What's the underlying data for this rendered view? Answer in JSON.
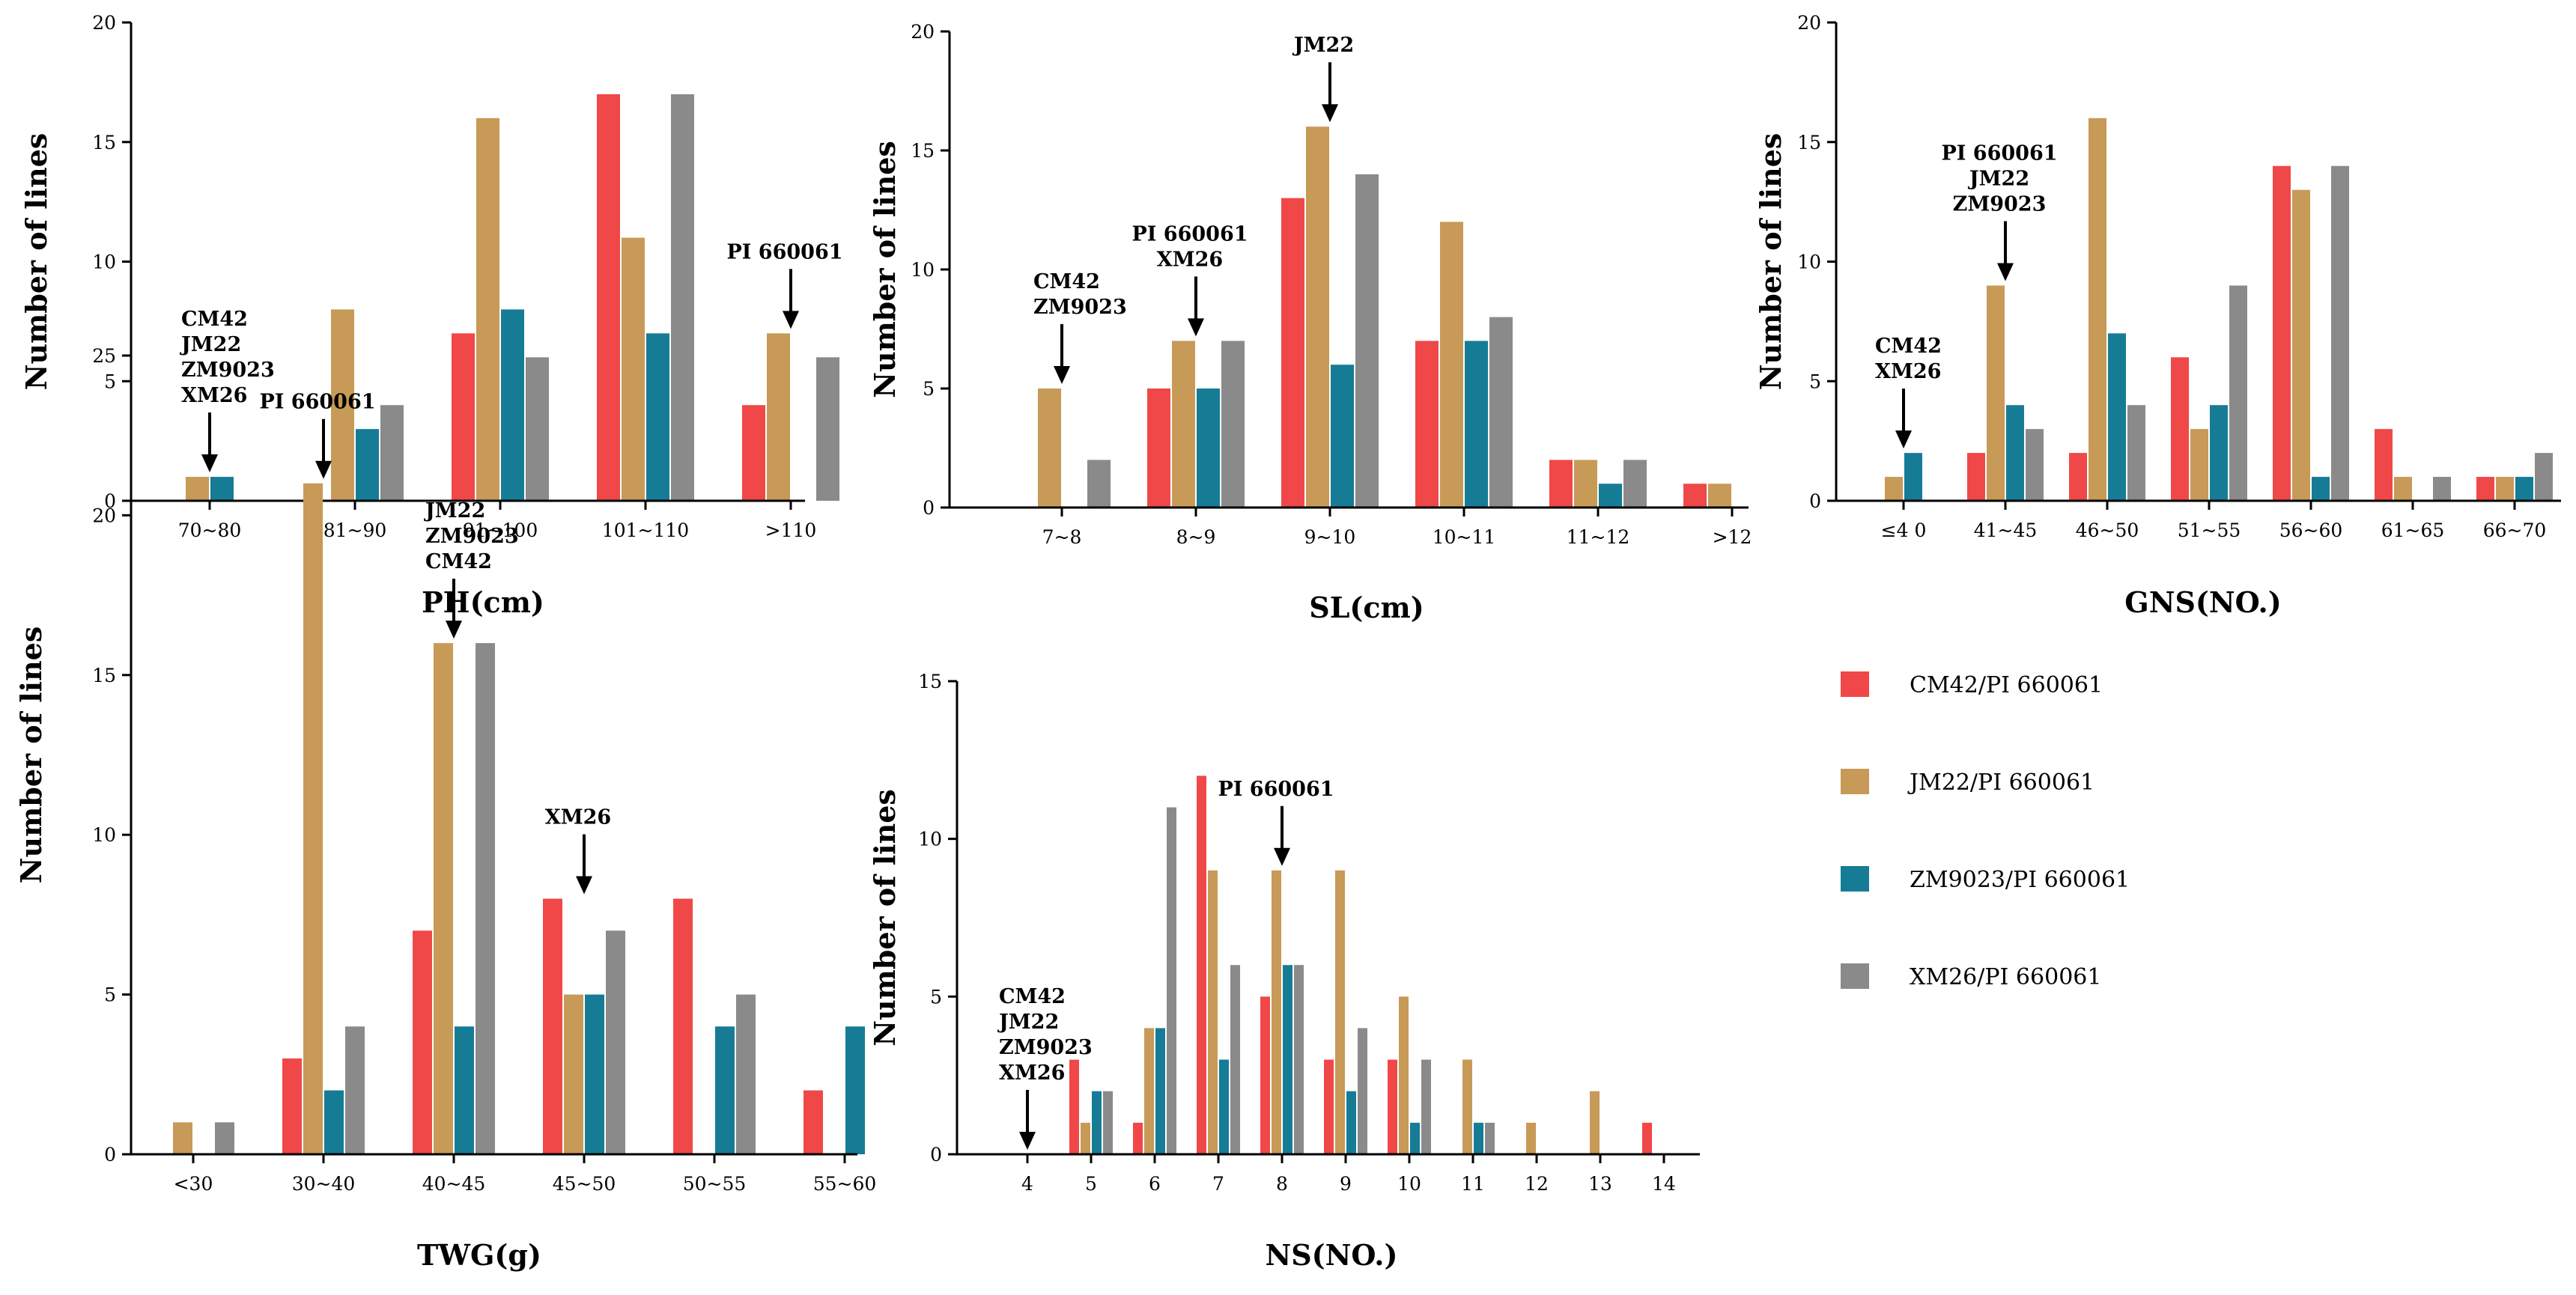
{
  "legend": [
    {
      "name": "CM42/PI 660061",
      "color": "#f04848"
    },
    {
      "name": "JM22/PI 660061",
      "color": "#c79a57"
    },
    {
      "name": "ZM9023/PI 660061",
      "color": "#167c96"
    },
    {
      "name": "XM26/PI 660061",
      "color": "#8a8a8a"
    }
  ],
  "chart_data": [
    {
      "id": "ph",
      "type": "bar",
      "xlabel": "PH(cm)",
      "ylabel": "Number  of  lines",
      "ylim": [
        0,
        20
      ],
      "yticks": [
        0,
        5,
        10,
        15,
        20
      ],
      "categories": [
        "70~80",
        "81~90",
        "91~100",
        "101~110",
        ">110"
      ],
      "series": [
        {
          "name": "CM42/PI 660061",
          "values": [
            0,
            0,
            7,
            17,
            4
          ]
        },
        {
          "name": "JM22/PI 660061",
          "values": [
            1,
            8,
            16,
            11,
            7
          ]
        },
        {
          "name": "ZM9023/PI 660061",
          "values": [
            1,
            3,
            8,
            7,
            0
          ]
        },
        {
          "name": "XM26/PI 660061",
          "values": [
            0,
            4,
            6,
            17,
            6
          ]
        }
      ],
      "annotations": [
        {
          "category": "70~80",
          "lines": [
            "CM42",
            "JM22",
            "ZM9023",
            "XM26"
          ],
          "arrow_to": 1
        },
        {
          "category": ">110",
          "lines": [
            "PI 660061"
          ],
          "arrow_to": 7
        }
      ]
    },
    {
      "id": "sl",
      "type": "bar",
      "xlabel": "SL(cm)",
      "ylabel": "Number  of  lines",
      "ylim": [
        0,
        20
      ],
      "yticks": [
        0,
        5,
        10,
        15,
        20
      ],
      "categories": [
        "7~8",
        "8~9",
        "9~10",
        "10~11",
        "11~12",
        ">12"
      ],
      "series": [
        {
          "name": "CM42/PI 660061",
          "values": [
            0,
            5,
            13,
            7,
            2,
            1
          ]
        },
        {
          "name": "JM22/PI 660061",
          "values": [
            5,
            7,
            16,
            12,
            2,
            1
          ]
        },
        {
          "name": "ZM9023/PI 660061",
          "values": [
            0,
            5,
            6,
            7,
            1,
            0
          ]
        },
        {
          "name": "XM26/PI 660061",
          "values": [
            2,
            7,
            14,
            8,
            2,
            0
          ]
        }
      ],
      "annotations": [
        {
          "category": "7~8",
          "lines": [
            "CM42",
            "ZM9023"
          ],
          "arrow_to": 5
        },
        {
          "category": "8~9",
          "lines": [
            "PI 660061",
            "XM26"
          ],
          "arrow_to": 7
        },
        {
          "category": "9~10",
          "lines": [
            "JM22"
          ],
          "arrow_to": 16
        }
      ]
    },
    {
      "id": "gns",
      "type": "bar",
      "xlabel": "GNS(NO.)",
      "ylabel": "Number  of  lines",
      "ylim": [
        0,
        20
      ],
      "yticks": [
        0,
        5,
        10,
        15,
        20
      ],
      "categories": [
        "≤4 0",
        "41~45",
        "46~50",
        "51~55",
        "56~60",
        "61~65",
        "66~70"
      ],
      "series": [
        {
          "name": "CM42/PI 660061",
          "values": [
            0,
            2,
            2,
            6,
            14,
            3,
            1
          ]
        },
        {
          "name": "JM22/PI 660061",
          "values": [
            1,
            9,
            16,
            3,
            13,
            1,
            1
          ]
        },
        {
          "name": "ZM9023/PI 660061",
          "values": [
            2,
            4,
            7,
            4,
            1,
            0,
            1
          ]
        },
        {
          "name": "XM26/PI 660061",
          "values": [
            0,
            3,
            4,
            9,
            14,
            1,
            2
          ]
        }
      ],
      "annotations": [
        {
          "category": "≤4 0",
          "lines": [
            "CM42",
            "XM26"
          ],
          "arrow_to": 2
        },
        {
          "category": "41~45",
          "lines": [
            "PI 660061",
            "JM22",
            "ZM9023"
          ],
          "arrow_to": 9
        }
      ]
    },
    {
      "id": "twg",
      "type": "bar",
      "xlabel": "TWG(g)",
      "ylabel": "Number  of  lines",
      "ylim": [
        0,
        25
      ],
      "yticks": [
        0,
        5,
        10,
        15,
        20,
        25
      ],
      "categories": [
        "<30",
        "30~40",
        "40~45",
        "45~50",
        "50~55",
        "55~60"
      ],
      "series": [
        {
          "name": "CM42/PI 660061",
          "values": [
            0,
            3,
            7,
            8,
            8,
            2
          ]
        },
        {
          "name": "JM22/PI 660061",
          "values": [
            1,
            21,
            16,
            5,
            0,
            0
          ]
        },
        {
          "name": "ZM9023/PI 660061",
          "values": [
            0,
            2,
            4,
            5,
            4,
            4
          ]
        },
        {
          "name": "XM26/PI 660061",
          "values": [
            1,
            4,
            16,
            7,
            5,
            0
          ]
        }
      ],
      "annotations": [
        {
          "category": "30~40",
          "lines": [
            "PI 660061"
          ],
          "arrow_to": 21
        },
        {
          "category": "40~45",
          "lines": [
            "JM22",
            "ZM9023",
            "CM42"
          ],
          "arrow_to": 16
        },
        {
          "category": "45~50",
          "lines": [
            "XM26"
          ],
          "arrow_to": 8
        }
      ]
    },
    {
      "id": "ns",
      "type": "bar",
      "xlabel": "NS(NO.)",
      "ylabel": "Number  of  lines",
      "ylim": [
        0,
        15
      ],
      "yticks": [
        0,
        5,
        10,
        15
      ],
      "categories": [
        "4",
        "5",
        "6",
        "7",
        "8",
        "9",
        "10",
        "11",
        "12",
        "13",
        "14"
      ],
      "series": [
        {
          "name": "CM42/PI 660061",
          "values": [
            0,
            3,
            1,
            12,
            5,
            3,
            3,
            0,
            0,
            0,
            1
          ]
        },
        {
          "name": "JM22/PI 660061",
          "values": [
            0,
            1,
            4,
            9,
            9,
            9,
            5,
            3,
            1,
            2,
            0
          ]
        },
        {
          "name": "ZM9023/PI 660061",
          "values": [
            0,
            2,
            4,
            3,
            6,
            2,
            1,
            1,
            0,
            0,
            0
          ]
        },
        {
          "name": "XM26/PI 660061",
          "values": [
            0,
            2,
            11,
            6,
            6,
            4,
            3,
            1,
            0,
            0,
            0
          ]
        }
      ],
      "annotations": [
        {
          "category": "4",
          "lines": [
            "CM42",
            "JM22",
            "ZM9023",
            "XM26"
          ],
          "arrow_to": 0
        },
        {
          "category": "8",
          "lines": [
            "PI 660061"
          ],
          "arrow_to": 9
        }
      ]
    }
  ]
}
